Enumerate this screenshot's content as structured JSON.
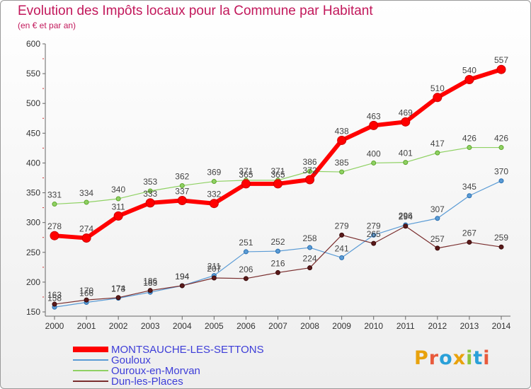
{
  "chart_data": {
    "type": "line",
    "title": "Evolution des Impôts locaux pour la Commune par Habitant",
    "subtitle": "(en € et par an)",
    "xlabel": "",
    "ylabel": "",
    "x": [
      "2000",
      "2001",
      "2002",
      "2003",
      "2004",
      "2005",
      "2006",
      "2007",
      "2008",
      "2009",
      "2010",
      "2011",
      "2012",
      "2013",
      "2014"
    ],
    "ylim": [
      150,
      600
    ],
    "yticks": [
      150,
      200,
      250,
      300,
      350,
      400,
      450,
      500,
      550,
      600
    ],
    "grid": false,
    "legend_placement": "bottom-left",
    "series": [
      {
        "name": "MONTSAUCHE-LES-SETTONS",
        "color": "#ff0000",
        "values": [
          278,
          274,
          311,
          333,
          337,
          332,
          365,
          365,
          372,
          438,
          463,
          469,
          510,
          540,
          557
        ]
      },
      {
        "name": "Gouloux",
        "color": "#5a9bd5",
        "values": [
          158,
          166,
          173,
          183,
          194,
          211,
          251,
          252,
          258,
          241,
          279,
          296,
          307,
          345,
          370
        ]
      },
      {
        "name": "Ouroux-en-Morvan",
        "color": "#8fd163",
        "values": [
          331,
          334,
          340,
          353,
          362,
          369,
          371,
          371,
          386,
          385,
          400,
          401,
          417,
          426,
          426
        ]
      },
      {
        "name": "Dun-les-Places",
        "color": "#7a2e2e",
        "values": [
          163,
          170,
          174,
          186,
          194,
          207,
          206,
          216,
          224,
          279,
          265,
          294,
          257,
          267,
          259
        ]
      }
    ]
  },
  "brand": {
    "letters": [
      "P",
      "r",
      "o",
      "x",
      "i",
      "t",
      "i"
    ],
    "colors": [
      "#e8a20c",
      "#e85a3c",
      "#2aa0d8",
      "#e8a20c",
      "#8cc63f",
      "#2aa0d8",
      "#e85a3c"
    ]
  }
}
